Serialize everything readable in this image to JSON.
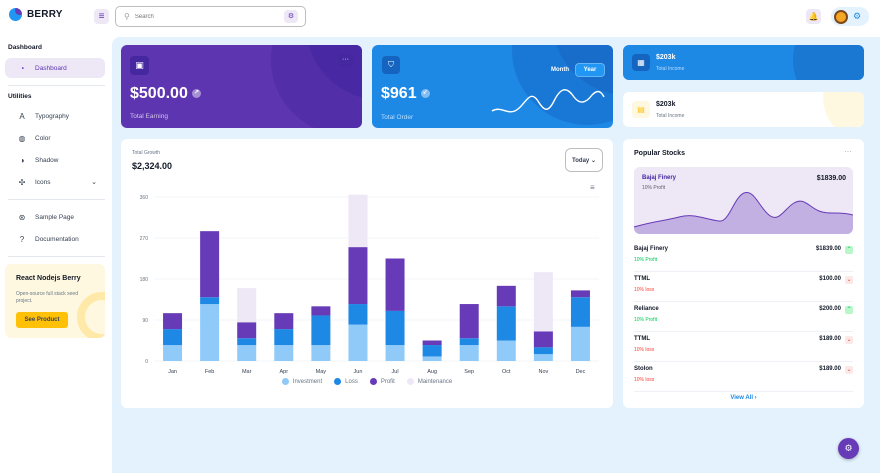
{
  "app": {
    "name": "BERRY"
  },
  "search": {
    "placeholder": "Search"
  },
  "sidebar": {
    "sections": [
      {
        "caption": "Dashboard",
        "items": [
          {
            "label": "Dashboard",
            "icon": "dashboard-icon",
            "active": true
          }
        ]
      },
      {
        "caption": "Utilities",
        "items": [
          {
            "label": "Typography",
            "icon": "typography-icon"
          },
          {
            "label": "Color",
            "icon": "palette-icon"
          },
          {
            "label": "Shadow",
            "icon": "shadow-icon"
          },
          {
            "label": "Icons",
            "icon": "windmill-icon",
            "expandable": true
          }
        ]
      },
      {
        "caption": "",
        "items": [
          {
            "label": "Sample Page",
            "icon": "brand-chrome-icon"
          },
          {
            "label": "Documentation",
            "icon": "help-icon"
          }
        ]
      }
    ],
    "promo": {
      "title": "React Nodejs Berry",
      "description": "Open-source full stack seed project.",
      "button": "See Product"
    }
  },
  "cards": {
    "earning": {
      "value": "$500.00",
      "label": "Total Earning"
    },
    "order": {
      "value": "$961",
      "label": "Total Order",
      "toggle_month": "Month",
      "toggle_year": "Year",
      "selected": "Year"
    },
    "income_dark": {
      "value": "$203k",
      "label": "Total Income"
    },
    "income_light": {
      "value": "$203k",
      "label": "Total Income"
    }
  },
  "growth": {
    "caption": "Total Growth",
    "value": "$2,324.00",
    "period": "Today"
  },
  "chart_data": {
    "type": "bar",
    "stacked": true,
    "categories": [
      "Jan",
      "Feb",
      "Mar",
      "Apr",
      "May",
      "Jun",
      "Jul",
      "Aug",
      "Sep",
      "Oct",
      "Nov",
      "Dec"
    ],
    "series": [
      {
        "name": "Investment",
        "color": "#90caf9",
        "values": [
          35,
          125,
          35,
          35,
          35,
          80,
          35,
          10,
          35,
          45,
          15,
          75
        ]
      },
      {
        "name": "Loss",
        "color": "#1e88e5",
        "values": [
          35,
          15,
          15,
          35,
          65,
          45,
          75,
          25,
          15,
          75,
          15,
          65
        ]
      },
      {
        "name": "Profit",
        "color": "#673ab7",
        "values": [
          35,
          145,
          35,
          35,
          20,
          125,
          115,
          10,
          75,
          45,
          35,
          15
        ]
      },
      {
        "name": "Maintenance",
        "color": "#ede7f6",
        "values": [
          0,
          0,
          75,
          0,
          0,
          115,
          0,
          0,
          0,
          0,
          130,
          0
        ]
      }
    ],
    "y_ticks": [
      0,
      90,
      180,
      270,
      360
    ],
    "ylim": [
      0,
      360
    ],
    "legend_position": "bottom-center",
    "grid": true
  },
  "stocks": {
    "title": "Popular Stocks",
    "hero": {
      "name": "Bajaj Finery",
      "sub": "10% Profit",
      "value": "$1839.00"
    },
    "rows": [
      {
        "name": "Bajaj Finery",
        "sub": "10% Profit",
        "value": "$1839.00",
        "trend": "up"
      },
      {
        "name": "TTML",
        "sub": "10% loss",
        "value": "$100.00",
        "trend": "down"
      },
      {
        "name": "Reliance",
        "sub": "10% Profit",
        "value": "$200.00",
        "trend": "up"
      },
      {
        "name": "TTML",
        "sub": "10% loss",
        "value": "$189.00",
        "trend": "down"
      },
      {
        "name": "Stolon",
        "sub": "10% loss",
        "value": "$189.00",
        "trend": "down"
      }
    ],
    "view_all": "View All"
  },
  "colors": {
    "primary": "#5e35b1",
    "secondary": "#1e88e5",
    "success": "#00c853",
    "error": "#f44336",
    "warning": "#ffc107"
  }
}
